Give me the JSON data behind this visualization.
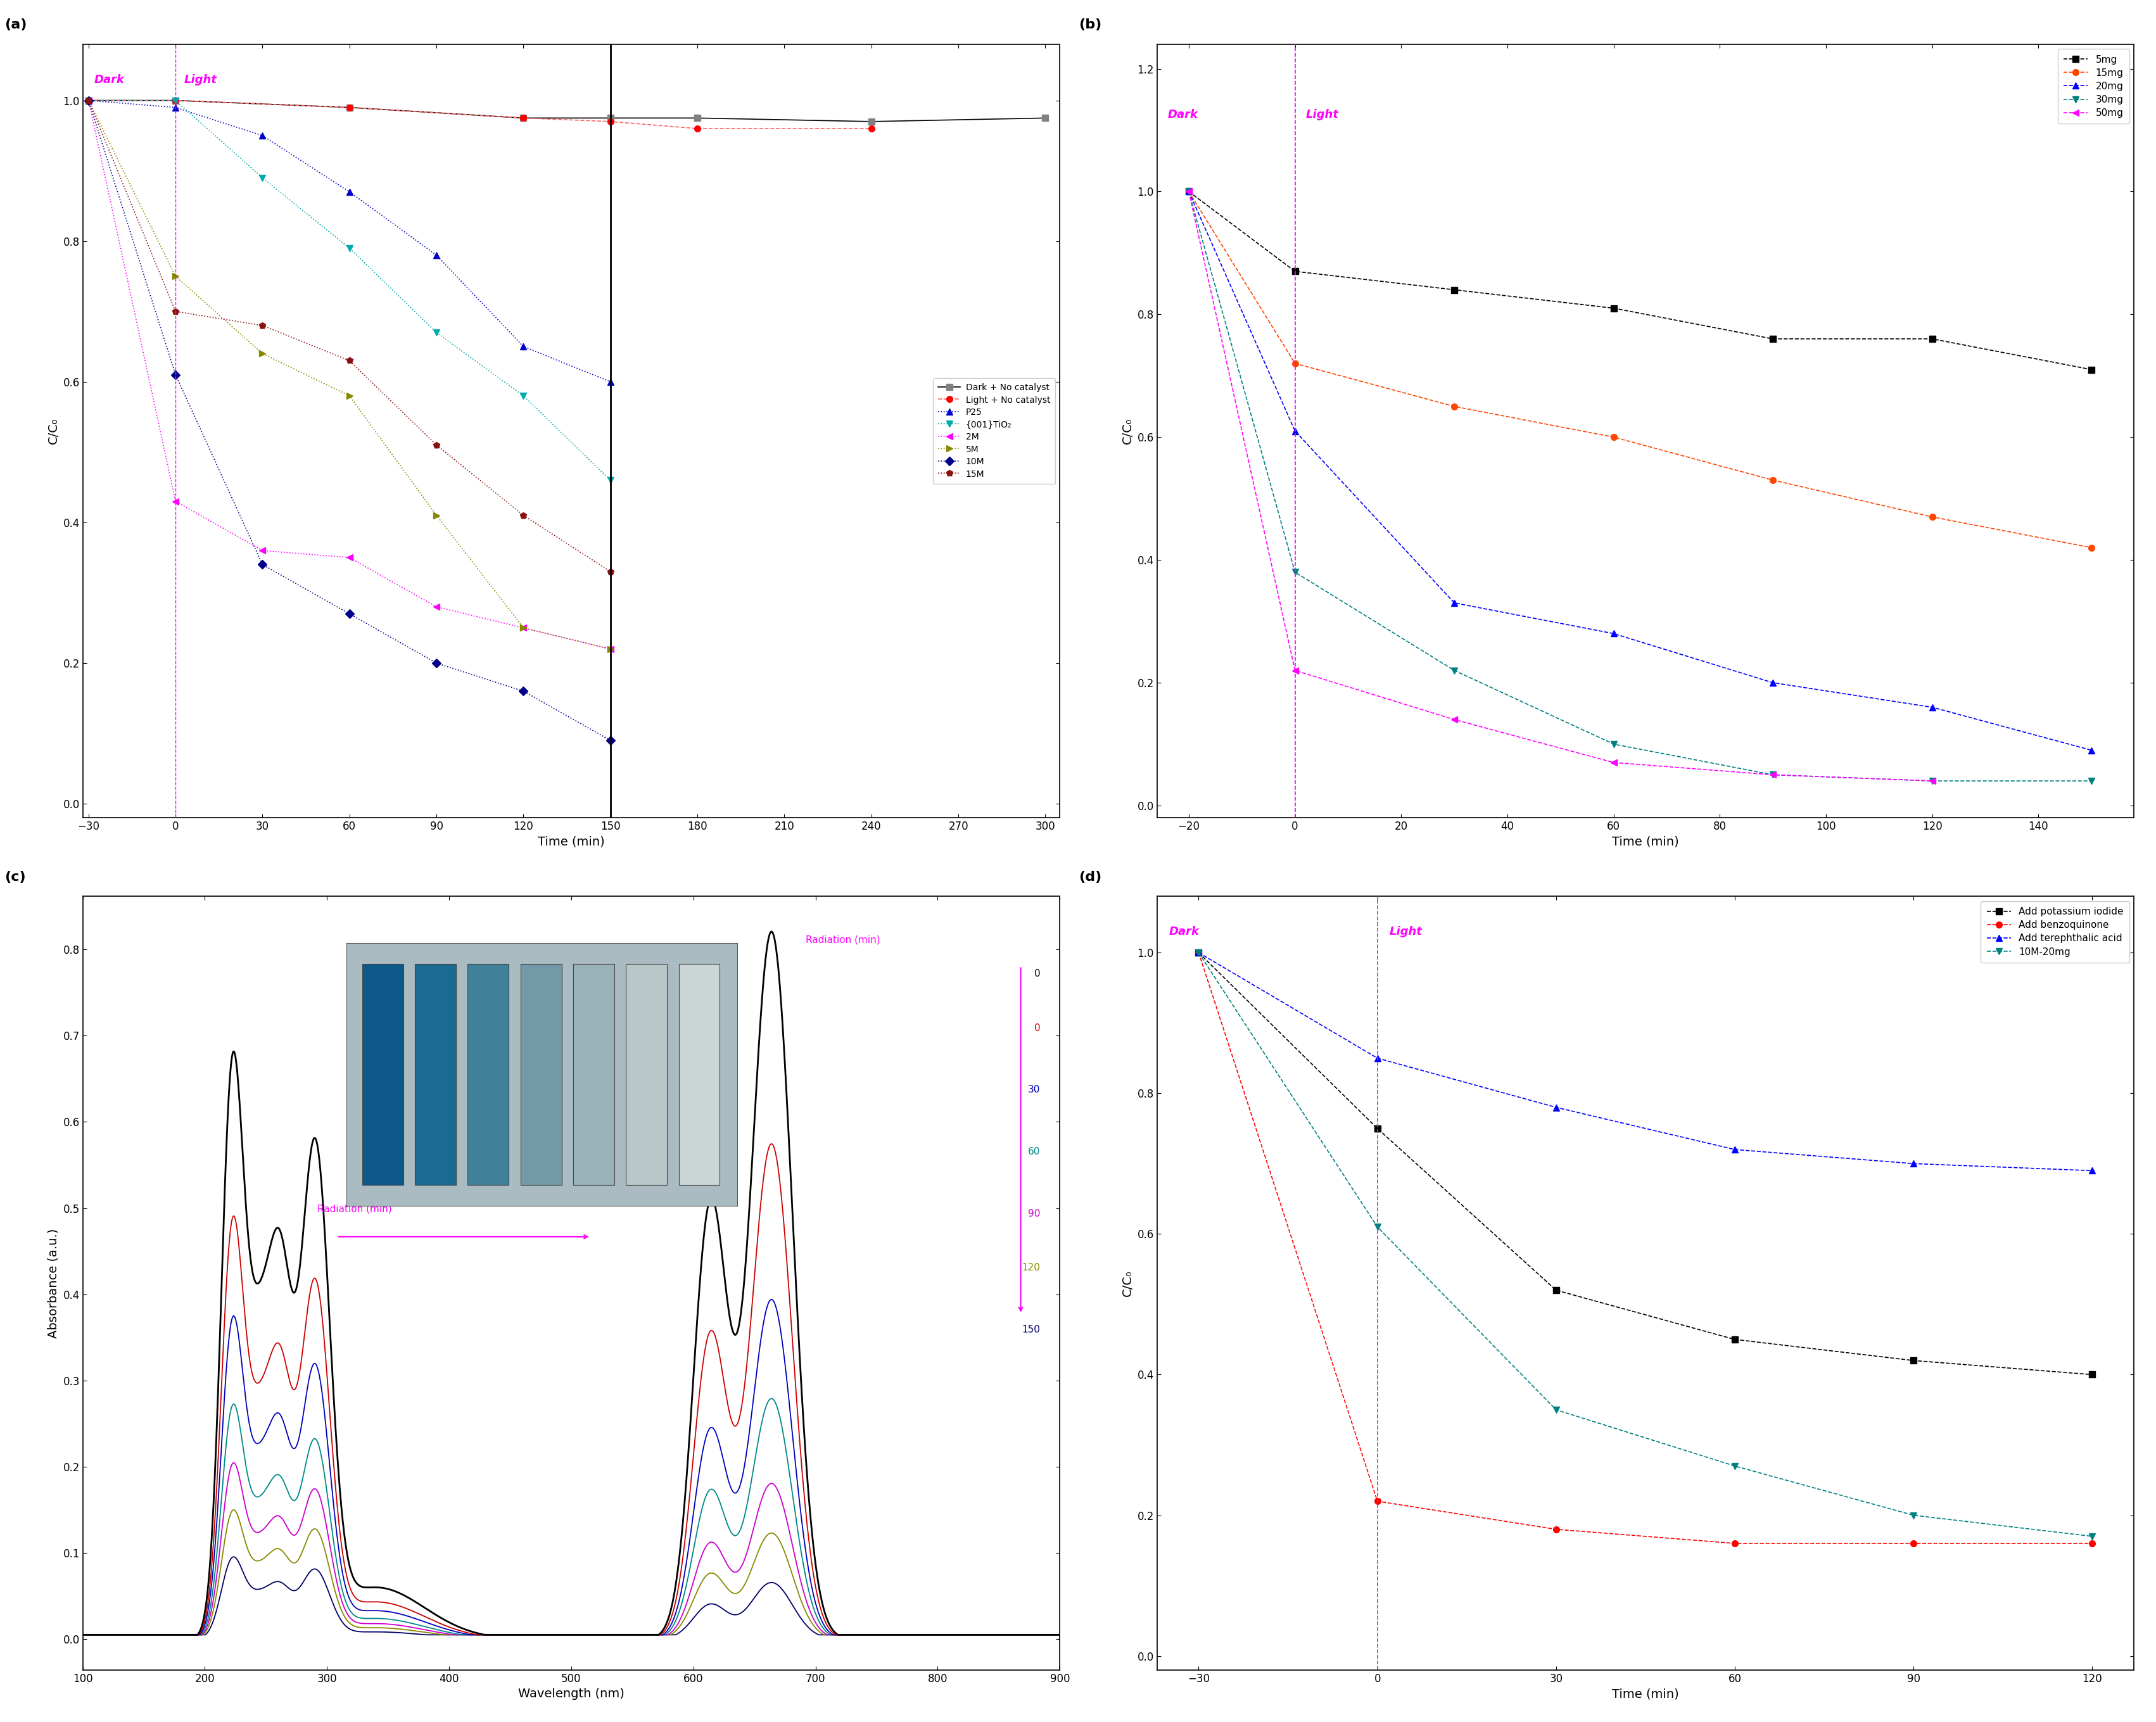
{
  "panel_a": {
    "xlabel": "Time (min)",
    "ylabel": "C/C₀",
    "xlim": [
      -32,
      305
    ],
    "ylim": [
      -0.02,
      1.08
    ],
    "xticks": [
      -30,
      0,
      30,
      60,
      90,
      120,
      150,
      180,
      210,
      240,
      270,
      300
    ],
    "yticks": [
      0.0,
      0.2,
      0.4,
      0.6,
      0.8,
      1.0
    ],
    "vline_x": 150,
    "series": [
      {
        "label": "Dark + No catalyst",
        "color": "#808080",
        "line_color": "#000000",
        "marker": "s",
        "linestyle": "-",
        "x": [
          -30,
          0,
          60,
          120,
          150,
          180,
          240,
          300
        ],
        "y": [
          1.0,
          1.0,
          0.99,
          0.975,
          0.975,
          0.975,
          0.97,
          0.975
        ]
      },
      {
        "label": "Light + No catalyst",
        "color": "#ff0000",
        "line_color": "#ff6666",
        "marker": "o",
        "linestyle": "--",
        "x": [
          -30,
          0,
          60,
          120,
          150,
          180,
          240
        ],
        "y": [
          1.0,
          1.0,
          0.99,
          0.975,
          0.97,
          0.96,
          0.96
        ]
      },
      {
        "label": "P25",
        "color": "#0000cc",
        "line_color": "#0000cc",
        "marker": "^",
        "linestyle": ":",
        "x": [
          -30,
          0,
          30,
          60,
          90,
          120,
          150
        ],
        "y": [
          1.0,
          0.99,
          0.95,
          0.87,
          0.78,
          0.65,
          0.6
        ]
      },
      {
        "label": "{001}TiO₂",
        "color": "#00aaaa",
        "line_color": "#00aaaa",
        "marker": "v",
        "linestyle": "-.",
        "x": [
          -30,
          0,
          30,
          60,
          90,
          120,
          150
        ],
        "y": [
          1.0,
          1.0,
          0.89,
          0.79,
          0.67,
          0.58,
          0.46
        ]
      },
      {
        "label": "2M",
        "color": "#ff00ff",
        "line_color": "#ff00ff",
        "marker": "<",
        "linestyle": ":",
        "x": [
          -30,
          0,
          30,
          60,
          90,
          120,
          150
        ],
        "y": [
          1.0,
          0.43,
          0.36,
          0.35,
          0.28,
          0.25,
          0.22
        ]
      },
      {
        "label": "5M",
        "color": "#888800",
        "line_color": "#888800",
        "marker": ">",
        "linestyle": ":",
        "x": [
          -30,
          0,
          30,
          60,
          90,
          120,
          150
        ],
        "y": [
          1.0,
          0.75,
          0.64,
          0.58,
          0.41,
          0.25,
          0.22
        ]
      },
      {
        "label": "10M",
        "color": "#000088",
        "line_color": "#000088",
        "marker": "D",
        "linestyle": ":",
        "x": [
          -30,
          0,
          30,
          60,
          90,
          120,
          150
        ],
        "y": [
          1.0,
          0.61,
          0.34,
          0.27,
          0.2,
          0.16,
          0.09
        ]
      },
      {
        "label": "15M",
        "color": "#8b1010",
        "line_color": "#8b1010",
        "marker": "p",
        "linestyle": "-.",
        "x": [
          -30,
          0,
          30,
          60,
          90,
          120,
          150
        ],
        "y": [
          1.0,
          0.7,
          0.68,
          0.63,
          0.51,
          0.41,
          0.33
        ]
      }
    ]
  },
  "panel_b": {
    "xlabel": "Time (min)",
    "ylabel": "C/C₀",
    "xlim": [
      -26,
      158
    ],
    "ylim": [
      -0.02,
      1.24
    ],
    "xticks": [
      -20,
      0,
      20,
      40,
      60,
      80,
      100,
      120,
      140
    ],
    "yticks": [
      0.0,
      0.2,
      0.4,
      0.6,
      0.8,
      1.0,
      1.2
    ],
    "vline_x": 0,
    "series": [
      {
        "label": "5mg",
        "color": "#000000",
        "marker": "s",
        "linestyle": "--",
        "x": [
          -20,
          0,
          30,
          60,
          90,
          120,
          150
        ],
        "y": [
          1.0,
          0.87,
          0.84,
          0.81,
          0.76,
          0.76,
          0.71
        ]
      },
      {
        "label": "15mg",
        "color": "#ff4500",
        "marker": "o",
        "linestyle": "--",
        "x": [
          -20,
          0,
          30,
          60,
          90,
          120,
          150
        ],
        "y": [
          1.0,
          0.72,
          0.65,
          0.6,
          0.53,
          0.47,
          0.42
        ]
      },
      {
        "label": "20mg",
        "color": "#0000ff",
        "marker": "^",
        "linestyle": "--",
        "x": [
          -20,
          0,
          30,
          60,
          90,
          120,
          150
        ],
        "y": [
          1.0,
          0.61,
          0.33,
          0.28,
          0.2,
          0.16,
          0.09
        ]
      },
      {
        "label": "30mg",
        "color": "#008080",
        "marker": "v",
        "linestyle": "--",
        "x": [
          -20,
          0,
          30,
          60,
          90,
          120,
          150
        ],
        "y": [
          1.0,
          0.38,
          0.22,
          0.1,
          0.05,
          0.04,
          0.04
        ]
      },
      {
        "label": "50mg",
        "color": "#ff00ff",
        "marker": "<",
        "linestyle": "--",
        "x": [
          -20,
          0,
          30,
          60,
          90,
          120
        ],
        "y": [
          1.0,
          0.22,
          0.14,
          0.07,
          0.05,
          0.04
        ]
      }
    ]
  },
  "panel_c": {
    "xlabel": "Wavelength (nm)",
    "ylabel": "Absorbance (a.u.)",
    "xlim": [
      100,
      900
    ],
    "xticks": [
      100,
      200,
      300,
      400,
      500,
      600,
      700,
      800,
      900
    ],
    "radiation_labels": [
      "0",
      "0",
      "30",
      "60",
      "90",
      "120",
      "150"
    ],
    "colors": [
      "#000000",
      "#cc0000",
      "#0000bb",
      "#008888",
      "#cc00cc",
      "#888800",
      "#000066"
    ]
  },
  "panel_d": {
    "xlabel": "Time (min)",
    "ylabel": "C/C₀",
    "xlim": [
      -37,
      127
    ],
    "ylim": [
      -0.02,
      1.08
    ],
    "xticks": [
      -30,
      0,
      30,
      60,
      90,
      120
    ],
    "yticks": [
      0.0,
      0.2,
      0.4,
      0.6,
      0.8,
      1.0
    ],
    "vline_x": 0,
    "series": [
      {
        "label": "Add potassium iodide",
        "color": "#000000",
        "marker": "s",
        "linestyle": "--",
        "x": [
          -30,
          0,
          30,
          60,
          90,
          120
        ],
        "y": [
          1.0,
          0.75,
          0.52,
          0.45,
          0.42,
          0.4
        ]
      },
      {
        "label": "Add benzoquinone",
        "color": "#ff0000",
        "marker": "o",
        "linestyle": "--",
        "x": [
          -30,
          0,
          30,
          60,
          90,
          120
        ],
        "y": [
          1.0,
          0.22,
          0.18,
          0.16,
          0.16,
          0.16
        ]
      },
      {
        "label": "Add terephthalic acid",
        "color": "#0000ff",
        "marker": "^",
        "linestyle": "--",
        "x": [
          -30,
          0,
          30,
          60,
          90,
          120
        ],
        "y": [
          1.0,
          0.85,
          0.78,
          0.72,
          0.7,
          0.69
        ]
      },
      {
        "label": "10M-20mg",
        "color": "#008080",
        "marker": "v",
        "linestyle": "--",
        "x": [
          -30,
          0,
          30,
          60,
          90,
          120
        ],
        "y": [
          1.0,
          0.61,
          0.35,
          0.27,
          0.2,
          0.17
        ]
      }
    ]
  }
}
